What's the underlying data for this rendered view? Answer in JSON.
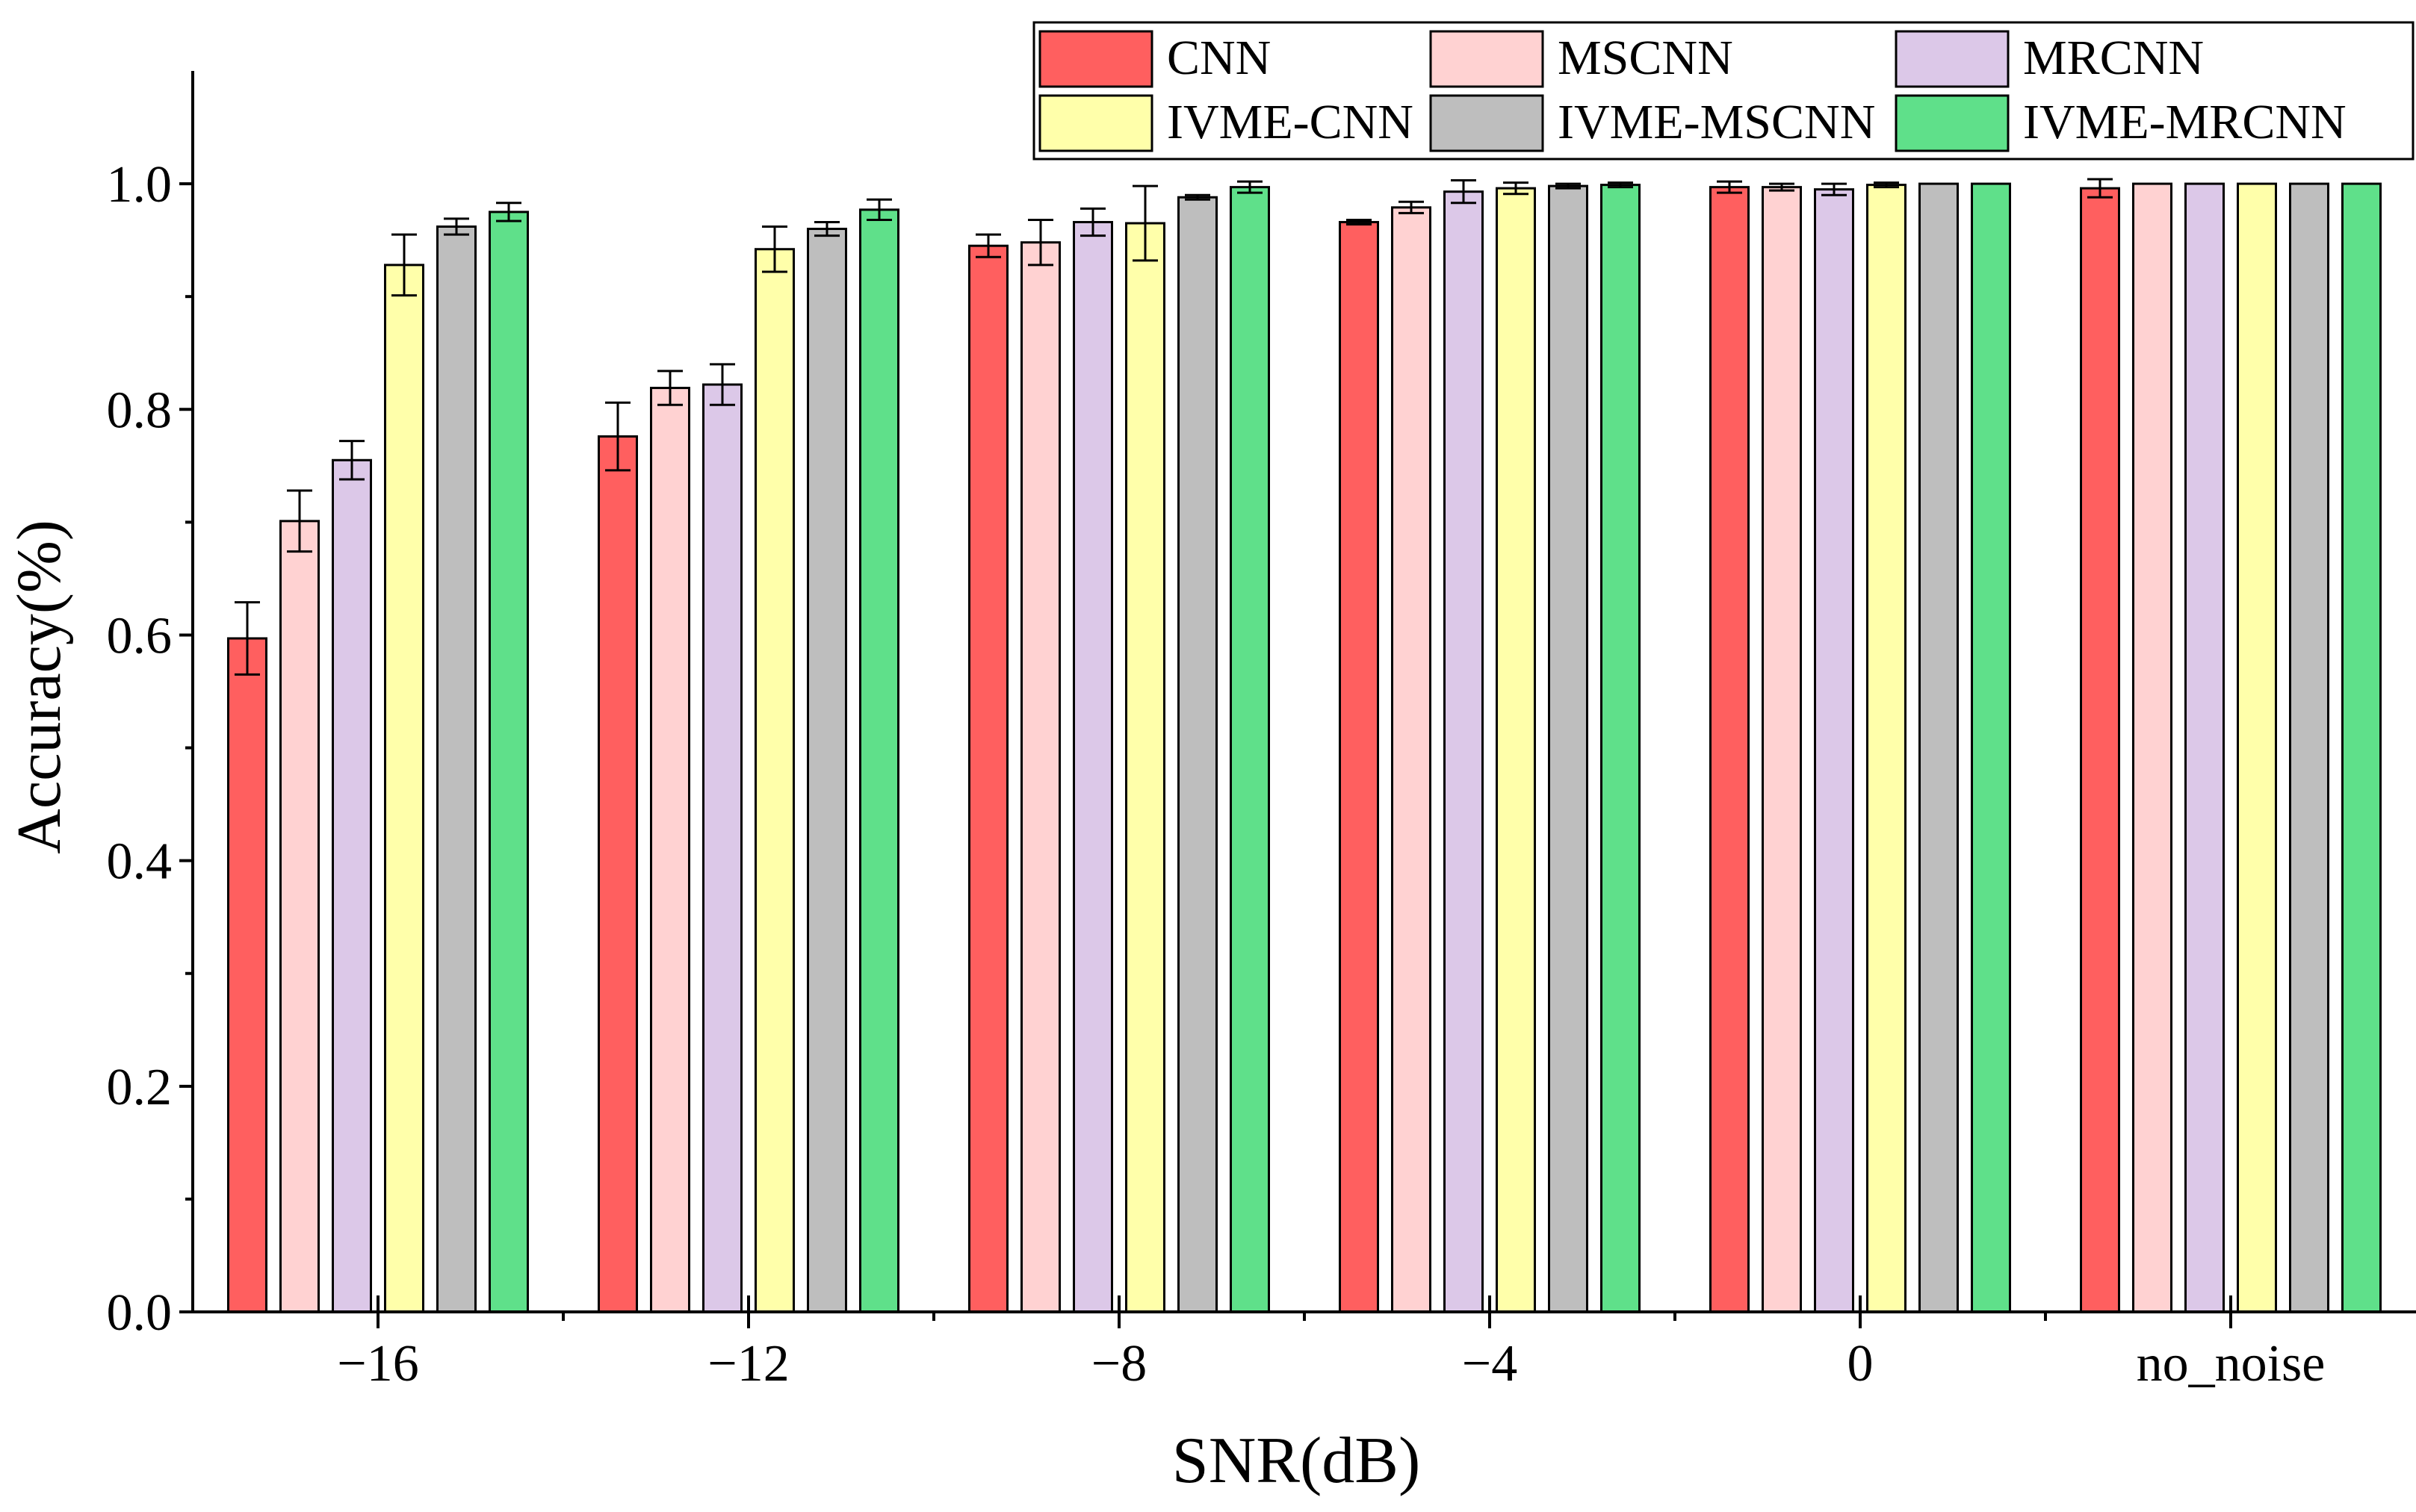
{
  "chart_data": {
    "type": "bar",
    "title": "",
    "xlabel": "SNR(dB)",
    "ylabel": "Accuracy(%)",
    "categories": [
      "−16",
      "−12",
      "−8",
      "−4",
      "0",
      "no_noise"
    ],
    "ylim": [
      0,
      1.1
    ],
    "yticks": [
      "0.0",
      "0.2",
      "0.4",
      "0.6",
      "0.8",
      "1.0"
    ],
    "ytick_values": [
      0,
      0.2,
      0.4,
      0.6,
      0.8,
      1.0
    ],
    "grid": false,
    "legend_position": "top-right",
    "series": [
      {
        "name": "CNN",
        "color": "#FF5F5F",
        "values": [
          0.597,
          0.776,
          0.945,
          0.966,
          0.997,
          0.996
        ],
        "errors": [
          0.032,
          0.03,
          0.01,
          0.002,
          0.005,
          0.008
        ]
      },
      {
        "name": "MSCNN",
        "color": "#FFD2D2",
        "values": [
          0.701,
          0.819,
          0.948,
          0.979,
          0.997,
          1.0
        ],
        "errors": [
          0.027,
          0.015,
          0.02,
          0.005,
          0.003,
          0.0
        ]
      },
      {
        "name": "MRCNN",
        "color": "#DCC8E8",
        "values": [
          0.755,
          0.822,
          0.966,
          0.993,
          0.995,
          1.0
        ],
        "errors": [
          0.017,
          0.018,
          0.012,
          0.01,
          0.005,
          0.0
        ]
      },
      {
        "name": "IVME-CNN",
        "color": "#FFFFAA",
        "values": [
          0.928,
          0.942,
          0.965,
          0.996,
          0.999,
          1.0
        ],
        "errors": [
          0.027,
          0.02,
          0.033,
          0.005,
          0.002,
          0.0
        ]
      },
      {
        "name": "IVME-MSCNN",
        "color": "#BEBEBE",
        "values": [
          0.962,
          0.96,
          0.988,
          0.998,
          1.0,
          1.0
        ],
        "errors": [
          0.007,
          0.006,
          0.002,
          0.002,
          0.0,
          0.0
        ]
      },
      {
        "name": "IVME-MRCNN",
        "color": "#5FE08A",
        "values": [
          0.975,
          0.977,
          0.997,
          0.999,
          1.0,
          1.0
        ],
        "errors": [
          0.008,
          0.009,
          0.005,
          0.002,
          0.0,
          0.0
        ]
      }
    ]
  }
}
